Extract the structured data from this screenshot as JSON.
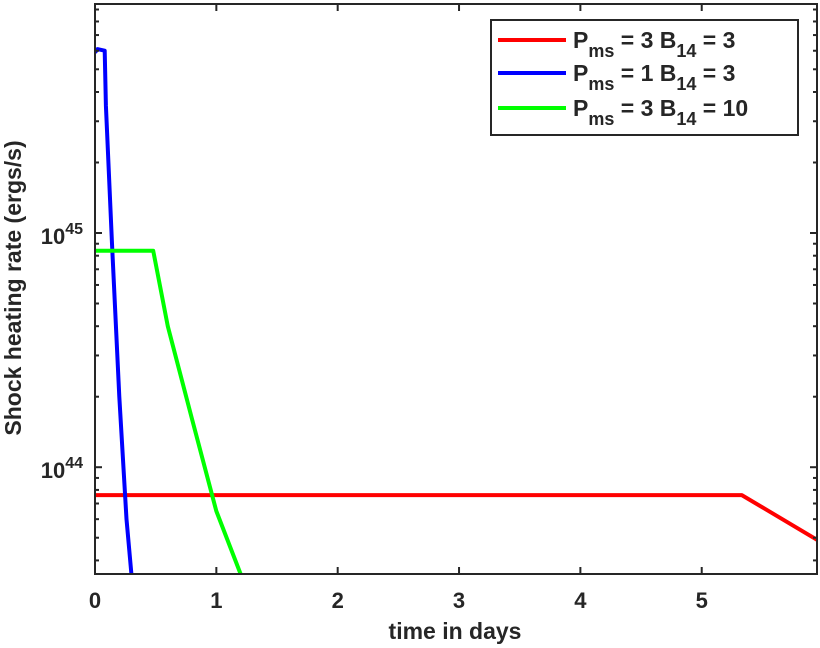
{
  "chart_data": {
    "type": "line",
    "title": "",
    "xlabel": "time in days",
    "ylabel": "Shock heating rate (ergs/s)",
    "x_scale": "linear",
    "y_scale": "log",
    "xlim": [
      0,
      5.95
    ],
    "ylim": [
      3.5e+43,
      9.5e+45
    ],
    "x_ticks": [
      0,
      1,
      2,
      3,
      4,
      5
    ],
    "x_tick_labels": [
      "0",
      "1",
      "2",
      "3",
      "4",
      "5"
    ],
    "y_ticks": [
      1e+44,
      1e+45
    ],
    "y_tick_labels": [
      {
        "base": "10",
        "exp": "44"
      },
      {
        "base": "10",
        "exp": "45"
      }
    ],
    "grid": false,
    "legend_position": "top-right",
    "series": [
      {
        "legend": {
          "p": "P",
          "p_sub": "ms",
          "mid": " = 3 B",
          "b_sub": "14",
          "tail": " = 3"
        },
        "color": "#ff0000",
        "x": [
          0,
          5.33,
          5.95
        ],
        "y": [
          7.6e+43,
          7.6e+43,
          4.9e+43
        ]
      },
      {
        "legend": {
          "p": "P",
          "p_sub": "ms",
          "mid": " = 1 B",
          "b_sub": "14",
          "tail": " = 3"
        },
        "color": "#0000ff",
        "x": [
          0,
          0.02,
          0.08,
          0.09,
          0.14,
          0.2,
          0.26,
          0.3
        ],
        "y": [
          5.9e+45,
          6.1e+45,
          6e+45,
          3.5e+45,
          9e+44,
          2e+44,
          6e+43,
          3.5e+43
        ]
      },
      {
        "legend": {
          "p": "P",
          "p_sub": "ms",
          "mid": " = 3 B",
          "b_sub": "14",
          "tail": " = 10"
        },
        "color": "#00ff00",
        "x": [
          0,
          0.48,
          0.6,
          0.8,
          1.0,
          1.2
        ],
        "y": [
          8.4e+44,
          8.4e+44,
          4e+44,
          1.6e+44,
          6.5e+43,
          3.5e+43
        ]
      }
    ]
  }
}
